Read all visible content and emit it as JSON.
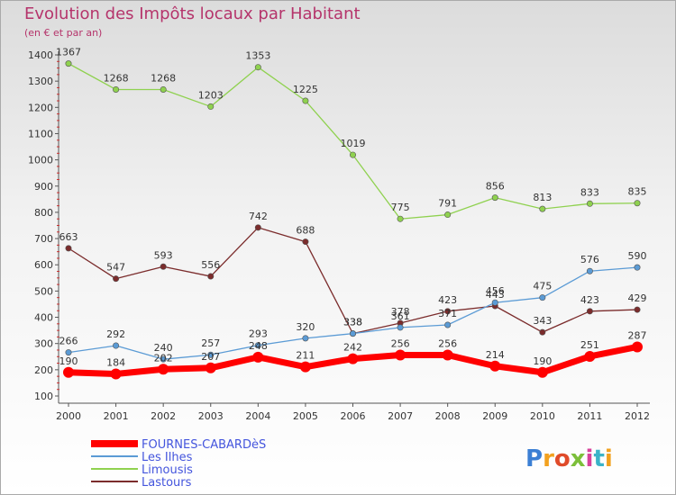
{
  "chart_data": {
    "type": "line",
    "title": "Evolution des Impôts locaux par Habitant",
    "subtitle": "(en € et par an)",
    "xlabel": "",
    "ylabel": "",
    "categories": [
      "2000",
      "2001",
      "2002",
      "2003",
      "2004",
      "2005",
      "2006",
      "2007",
      "2008",
      "2009",
      "2010",
      "2011",
      "2012"
    ],
    "ylim": [
      100,
      1400
    ],
    "yticks": [
      100,
      200,
      300,
      400,
      500,
      600,
      700,
      800,
      900,
      1000,
      1100,
      1200,
      1300,
      1400
    ],
    "grid": false,
    "legend_position": "bottom-left",
    "series": [
      {
        "name": "FOURNES-CABARDèS",
        "color": "#ff0000",
        "values": [
          190,
          184,
          202,
          207,
          248,
          211,
          242,
          256,
          256,
          214,
          190,
          251,
          287
        ]
      },
      {
        "name": "Les Ilhes",
        "color": "#5b9bd5",
        "values": [
          266,
          292,
          240,
          257,
          293,
          320,
          338,
          361,
          371,
          456,
          475,
          576,
          590
        ]
      },
      {
        "name": "Limousis",
        "color": "#8fd14f",
        "values": [
          1367,
          1268,
          1268,
          1203,
          1353,
          1225,
          1019,
          775,
          791,
          856,
          813,
          833,
          835
        ]
      },
      {
        "name": "Lastours",
        "color": "#7b2c2c",
        "values": [
          663,
          547,
          593,
          556,
          742,
          688,
          338,
          378,
          423,
          443,
          343,
          423,
          429
        ]
      }
    ]
  },
  "brand": {
    "text": "Proxiti"
  }
}
